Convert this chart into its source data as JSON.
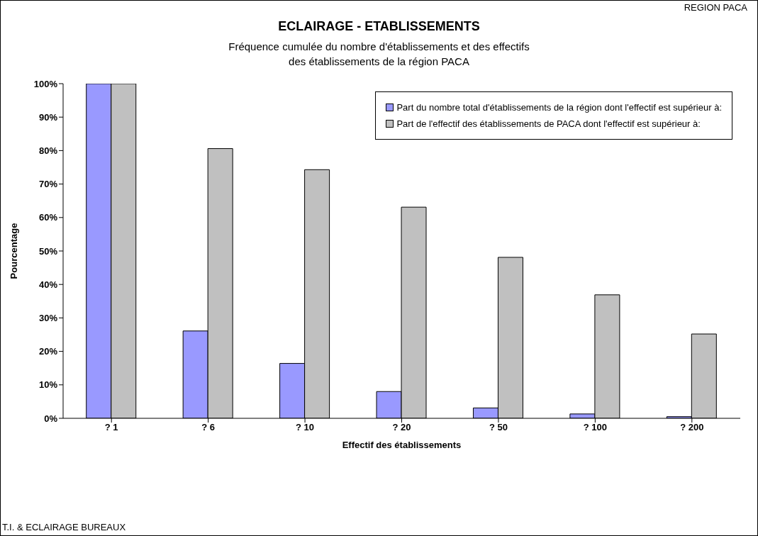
{
  "chart_data": {
    "type": "bar",
    "title": "ECLAIRAGE - ETABLISSEMENTS",
    "subtitle": "Fréquence cumulée du nombre d'établissements et des effectifs\ndes établissements de la région PACA",
    "xlabel": "Effectif des établissements",
    "ylabel": "Pourcentage",
    "annotations": [
      "REGION PACA",
      "T.I. & ECLAIRAGE BUREAUX"
    ],
    "categories": [
      "? 1",
      "? 6",
      "? 10",
      "? 20",
      "? 50",
      "? 100",
      "? 200"
    ],
    "series": [
      {
        "name": "Part du nombre total d'établissements de la région dont l'effectif est supérieur à:",
        "color": "#9999ff",
        "values": [
          100,
          26.1,
          16.4,
          8.0,
          3.1,
          1.3,
          0.5
        ]
      },
      {
        "name": "Part de l'effectif des établissements de PACA dont l'effectif est supérieur à:",
        "color": "#c0c0c0",
        "values": [
          100,
          80.6,
          74.3,
          63.1,
          48.1,
          36.9,
          25.2
        ]
      }
    ],
    "ylim": [
      0,
      100
    ],
    "yticks": [
      {
        "value": 0,
        "label": "0%"
      },
      {
        "value": 10,
        "label": "10%"
      },
      {
        "value": 20,
        "label": "20%"
      },
      {
        "value": 30,
        "label": "30%"
      },
      {
        "value": 40,
        "label": "40%"
      },
      {
        "value": 50,
        "label": "50%"
      },
      {
        "value": 60,
        "label": "60%"
      },
      {
        "value": 70,
        "label": "70%"
      },
      {
        "value": 80,
        "label": "80%"
      },
      {
        "value": 90,
        "label": "90%"
      },
      {
        "value": 100,
        "label": "100%"
      }
    ],
    "grid": false,
    "legend": "top right"
  }
}
